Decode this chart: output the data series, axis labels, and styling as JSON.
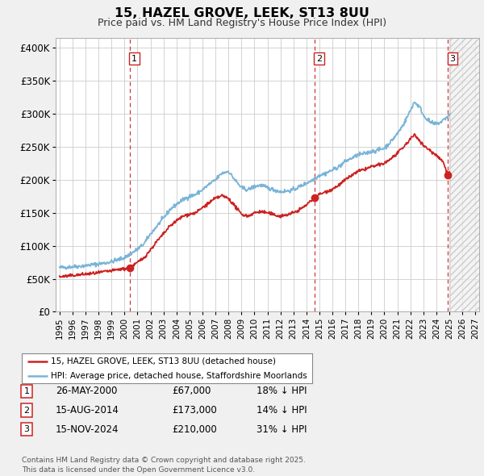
{
  "title": "15, HAZEL GROVE, LEEK, ST13 8UU",
  "subtitle": "Price paid vs. HM Land Registry's House Price Index (HPI)",
  "ylabel_ticks": [
    "£0",
    "£50K",
    "£100K",
    "£150K",
    "£200K",
    "£250K",
    "£300K",
    "£350K",
    "£400K"
  ],
  "ytick_values": [
    0,
    50000,
    100000,
    150000,
    200000,
    250000,
    300000,
    350000,
    400000
  ],
  "ylim": [
    0,
    415000
  ],
  "xlim_start": 1994.7,
  "xlim_end": 2027.3,
  "hpi_color": "#7ab4d8",
  "price_color": "#cc2222",
  "vline_color": "#cc2222",
  "hatch_start": 2025.08,
  "sales": [
    {
      "date_num": 2000.4,
      "price": 67000,
      "label": "1"
    },
    {
      "date_num": 2014.62,
      "price": 173000,
      "label": "2"
    },
    {
      "date_num": 2024.88,
      "price": 210000,
      "label": "3"
    }
  ],
  "sale_dates_text": [
    "26-MAY-2000",
    "15-AUG-2014",
    "15-NOV-2024"
  ],
  "sale_prices_text": [
    "£67,000",
    "£173,000",
    "£210,000"
  ],
  "sale_below_text": [
    "18% ↓ HPI",
    "14% ↓ HPI",
    "31% ↓ HPI"
  ],
  "legend_label_red": "15, HAZEL GROVE, LEEK, ST13 8UU (detached house)",
  "legend_label_blue": "HPI: Average price, detached house, Staffordshire Moorlands",
  "footer_text": "Contains HM Land Registry data © Crown copyright and database right 2025.\nThis data is licensed under the Open Government Licence v3.0.",
  "xtick_years": [
    1995,
    1996,
    1997,
    1998,
    1999,
    2000,
    2001,
    2002,
    2003,
    2004,
    2005,
    2006,
    2007,
    2008,
    2009,
    2010,
    2011,
    2012,
    2013,
    2014,
    2015,
    2016,
    2017,
    2018,
    2019,
    2020,
    2021,
    2022,
    2023,
    2024,
    2025,
    2026,
    2027
  ],
  "background_color": "#f0f0f0",
  "plot_bg_color": "#ffffff",
  "grid_color": "#cccccc"
}
